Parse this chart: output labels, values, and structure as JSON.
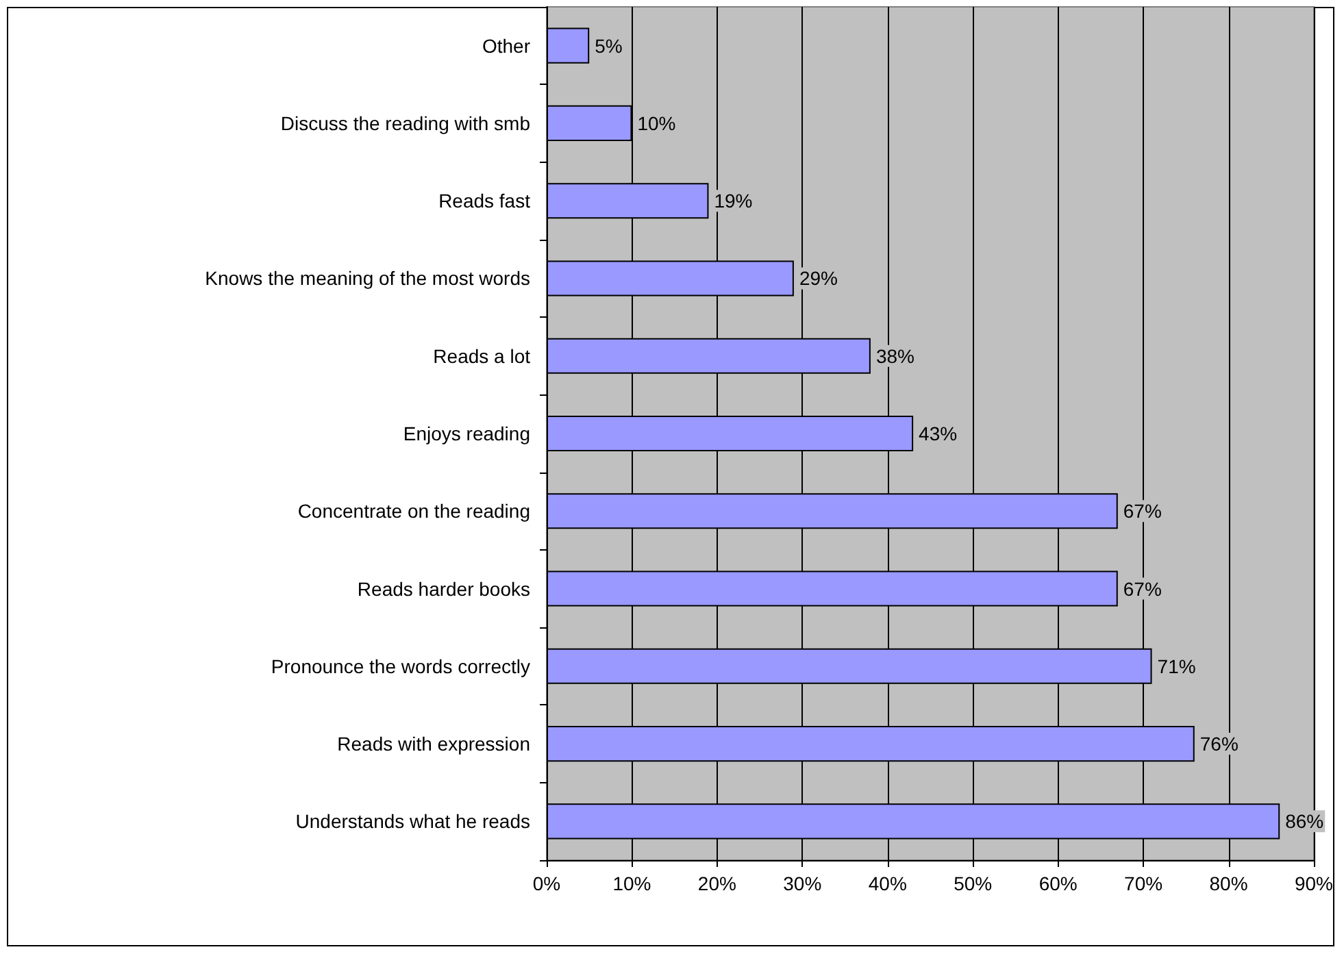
{
  "chart_data": {
    "type": "bar",
    "orientation": "horizontal",
    "categories": [
      "Other",
      "Discuss the reading with smb",
      "Reads fast",
      "Knows the meaning of the most words",
      "Reads a lot",
      "Enjoys reading",
      "Concentrate on the reading",
      "Reads harder books",
      "Pronounce the words correctly",
      "Reads with expression",
      "Understands what he reads"
    ],
    "values": [
      5,
      10,
      19,
      29,
      38,
      43,
      67,
      67,
      71,
      76,
      86
    ],
    "value_labels": [
      "5%",
      "10%",
      "19%",
      "29%",
      "38%",
      "43%",
      "67%",
      "67%",
      "71%",
      "76%",
      "86%"
    ],
    "color": "#9999ff",
    "xlim": [
      0,
      90
    ],
    "xticks": [
      {
        "value": 0,
        "label": "0%"
      },
      {
        "value": 10,
        "label": "10%"
      },
      {
        "value": 20,
        "label": "20%"
      },
      {
        "value": 30,
        "label": "30%"
      },
      {
        "value": 40,
        "label": "40%"
      },
      {
        "value": 50,
        "label": "50%"
      },
      {
        "value": 60,
        "label": "60%"
      },
      {
        "value": 70,
        "label": "70%"
      },
      {
        "value": 80,
        "label": "80%"
      },
      {
        "value": 90,
        "label": "90%"
      }
    ],
    "grid": "x"
  }
}
